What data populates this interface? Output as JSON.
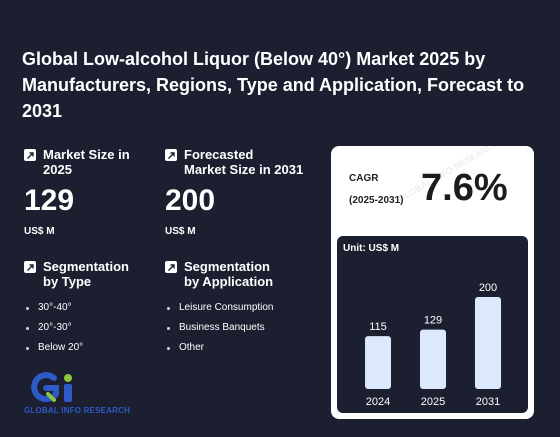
{
  "report": {
    "title": "Global Low-alcohol Liquor (Below 40°) Market 2025 by Manufacturers, Regions, Type and Application, Forecast to 2031"
  },
  "metrics": {
    "market_size": {
      "label_line1": "Market Size in",
      "label_line2": "2025",
      "value": "129",
      "unit": "US$ M"
    },
    "forecast": {
      "label_line1": "Forecasted",
      "label_line2": "Market Size in 2031",
      "value": "200",
      "unit": "US$ M"
    }
  },
  "segmentation_type": {
    "label_line1": "Segmentation",
    "label_line2": "by Type",
    "items": [
      "30°-40°",
      "20°-30°",
      "Below 20°"
    ]
  },
  "segmentation_application": {
    "label_line1": "Segmentation",
    "label_line2": "by Application",
    "items": [
      "Leisure Consumption",
      "Business Banquets",
      "Other"
    ]
  },
  "cagr": {
    "label": "CAGR",
    "period": "(2025-2031)",
    "value": "7.6%"
  },
  "logo": {
    "text": "GLOBAL INFO RESEARCH"
  },
  "watermark": {
    "text": "GLOBAL INFO RESEARCH"
  },
  "colors": {
    "background": "#1b1f30",
    "bar": "#dce8fb",
    "logo_blue": "#2e59c7",
    "logo_green": "#8cc63f"
  },
  "chart_data": {
    "type": "bar",
    "unit_label": "Unit: US$ M",
    "categories": [
      "2024",
      "2025",
      "2031"
    ],
    "values": [
      115,
      129,
      200
    ],
    "data_labels": [
      "115",
      "129",
      "200"
    ],
    "ylim": [
      0,
      200
    ]
  }
}
